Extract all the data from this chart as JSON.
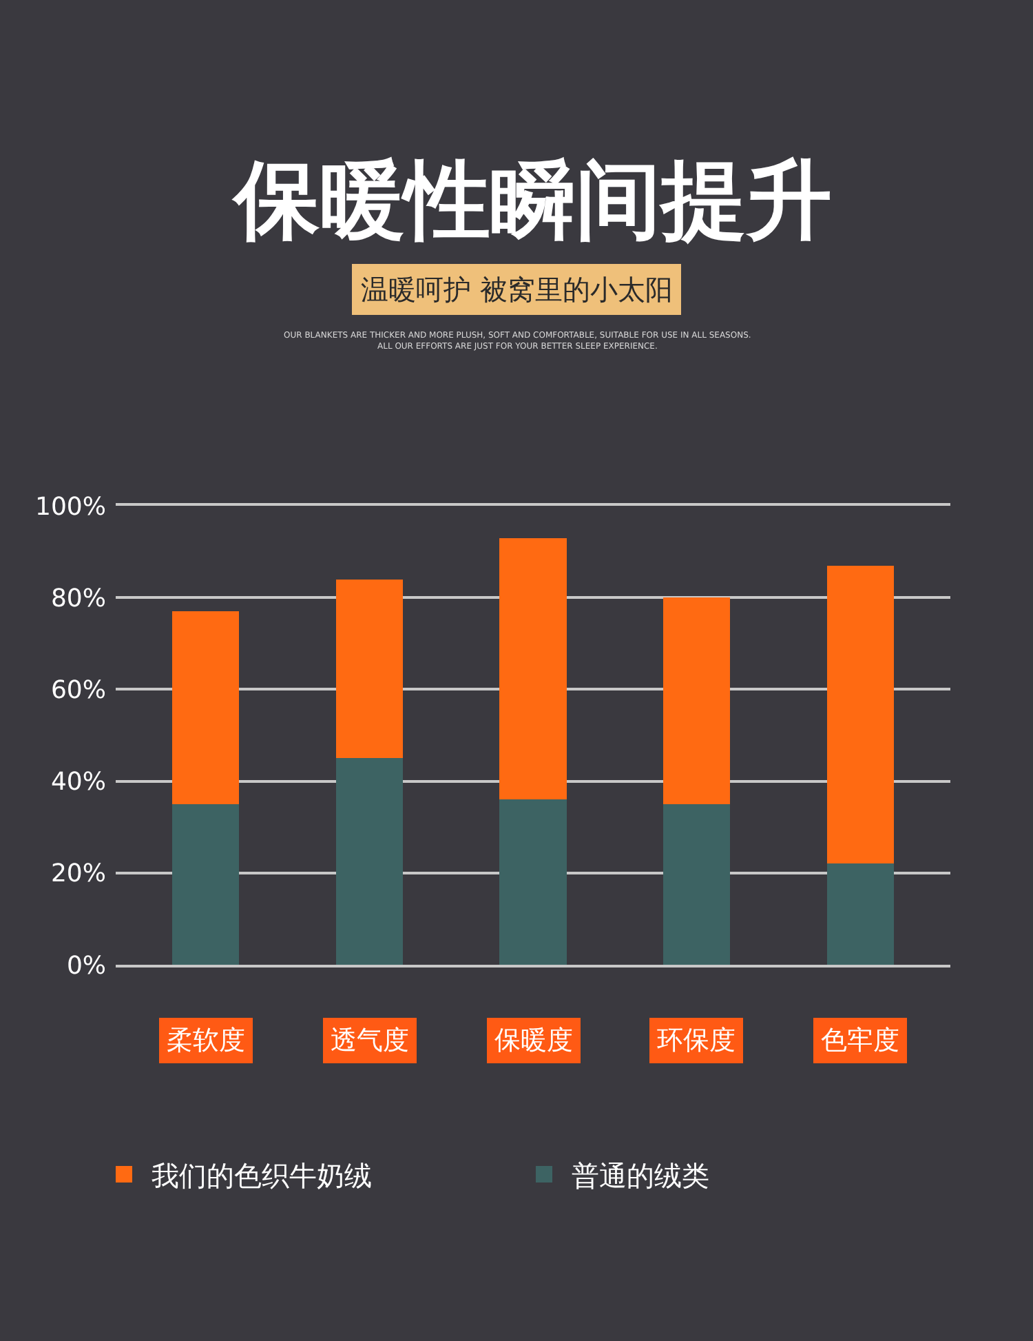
{
  "chart_data": {
    "type": "bar",
    "title": "保暖性瞬间提升",
    "subtitle": "温暖呵护 被窝里的小太阳",
    "annotations": [
      "OUR BLANKETS ARE THICKER AND MORE PLUSH, SOFT AND COMFORTABLE, SUITABLE FOR USE IN ALL SEASONS.",
      "ALL OUR EFFORTS ARE JUST FOR YOUR BETTER SLEEP EXPERIENCE."
    ],
    "categories": [
      "柔软度",
      "透气度",
      "保暖度",
      "环保度",
      "色牢度"
    ],
    "stacked": true,
    "series": [
      {
        "name": "普通的绒类",
        "color": "#3d6363",
        "values": [
          35,
          45,
          36,
          35,
          22
        ]
      },
      {
        "name": "我们的色织牛奶绒",
        "color": "#ff6a12",
        "values": [
          42,
          39,
          57,
          45,
          65
        ]
      }
    ],
    "ylim": [
      0,
      100
    ],
    "yticks": [
      {
        "value": 0,
        "label": "0%"
      },
      {
        "value": 20,
        "label": "20%"
      },
      {
        "value": 40,
        "label": "40%"
      },
      {
        "value": 60,
        "label": "60%"
      },
      {
        "value": 80,
        "label": "80%"
      },
      {
        "value": 100,
        "label": "100%"
      }
    ],
    "grid": "y",
    "legend": "bottom"
  }
}
